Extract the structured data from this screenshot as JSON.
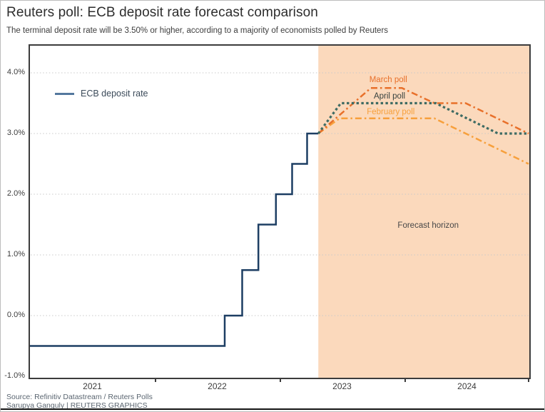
{
  "header": {
    "title": "Reuters poll: ECB deposit rate forecast comparison",
    "subtitle": "The terminal deposit rate will be 3.50% or higher, according to a majority of economists polled by Reuters"
  },
  "footer": {
    "source": "Source: Refinitiv Datastream / Reuters Polls",
    "credit": "Sarupya Ganguly | REUTERS GRAPHICS"
  },
  "legend": {
    "label": "ECB deposit rate"
  },
  "colors": {
    "navy": "#1d3e63",
    "legend_swatch": "#54789e",
    "march": "#e8702a",
    "april": "#3e6b63",
    "february": "#f7a03c",
    "forecast_bg": "#fbd9bc",
    "grid": "#c9c9c9",
    "axis": "#3c3c3c",
    "annotation_dark": "#37423f",
    "forecast_label": "#474747"
  },
  "chart_data": {
    "type": "line",
    "title": "Reuters poll: ECB deposit rate forecast comparison",
    "xlabel": "",
    "ylabel": "",
    "x_range": [
      2021,
      2025
    ],
    "y_range": [
      -1.0,
      4.5
    ],
    "grid": "dotted-horizontal",
    "y_ticks": [
      {
        "value": 4.0,
        "label": "4.0%"
      },
      {
        "value": 3.0,
        "label": "3.0%"
      },
      {
        "value": 2.0,
        "label": "2.0%"
      },
      {
        "value": 1.0,
        "label": "1.0%"
      },
      {
        "value": 0.0,
        "label": "0.0%"
      },
      {
        "value": -1.0,
        "label": "-1.0%"
      }
    ],
    "x_ticks": [
      {
        "value": 2021.5,
        "label": "2021"
      },
      {
        "value": 2022.5,
        "label": "2022"
      },
      {
        "value": 2023.5,
        "label": "2023"
      },
      {
        "value": 2024.5,
        "label": "2024"
      }
    ],
    "x_tick_marks": [
      2022,
      2023,
      2024,
      2025
    ],
    "forecast_region": {
      "x_start": 2023.31,
      "x_end": 2025.0,
      "label": "Forecast horizon"
    },
    "series": [
      {
        "id": "ecb",
        "name": "ECB deposit rate",
        "style": "solid",
        "color": "#1d3e63",
        "points": [
          [
            2021.0,
            -0.5
          ],
          [
            2022.56,
            -0.5
          ],
          [
            2022.56,
            0.0
          ],
          [
            2022.7,
            0.0
          ],
          [
            2022.7,
            0.75
          ],
          [
            2022.83,
            0.75
          ],
          [
            2022.83,
            1.5
          ],
          [
            2022.97,
            1.5
          ],
          [
            2022.97,
            2.0
          ],
          [
            2023.1,
            2.0
          ],
          [
            2023.1,
            2.5
          ],
          [
            2023.22,
            2.5
          ],
          [
            2023.22,
            3.0
          ],
          [
            2023.31,
            3.0
          ]
        ]
      },
      {
        "id": "february",
        "name": "February poll",
        "style": "dashdot",
        "color": "#f7a03c",
        "points": [
          [
            2023.31,
            3.0
          ],
          [
            2023.48,
            3.25
          ],
          [
            2024.24,
            3.25
          ],
          [
            2025.0,
            2.5
          ]
        ]
      },
      {
        "id": "march",
        "name": "March poll",
        "style": "dashdot",
        "color": "#e8702a",
        "points": [
          [
            2023.31,
            3.0
          ],
          [
            2023.73,
            3.75
          ],
          [
            2023.98,
            3.75
          ],
          [
            2024.24,
            3.5
          ],
          [
            2024.49,
            3.5
          ],
          [
            2025.0,
            3.0
          ]
        ]
      },
      {
        "id": "april",
        "name": "April poll",
        "style": "dotted",
        "color": "#3e6b63",
        "points": [
          [
            2023.31,
            3.0
          ],
          [
            2023.49,
            3.5
          ],
          [
            2024.25,
            3.5
          ],
          [
            2024.75,
            3.0
          ],
          [
            2025.0,
            3.0
          ]
        ]
      }
    ],
    "annotations": [
      {
        "id": "march-poll-label",
        "text": "March poll",
        "x": 2023.87,
        "y": 3.88,
        "color": "#e8702a"
      },
      {
        "id": "april-poll-label",
        "text": "April poll",
        "x": 2023.88,
        "y": 3.61,
        "color": "#37423f"
      },
      {
        "id": "february-poll-label",
        "text": "February poll",
        "x": 2023.89,
        "y": 3.35,
        "color": "#f7a03c"
      },
      {
        "id": "forecast-horizon-label",
        "text": "Forecast horizon",
        "x": 2024.19,
        "y": 1.48,
        "color": "#474747"
      }
    ]
  }
}
